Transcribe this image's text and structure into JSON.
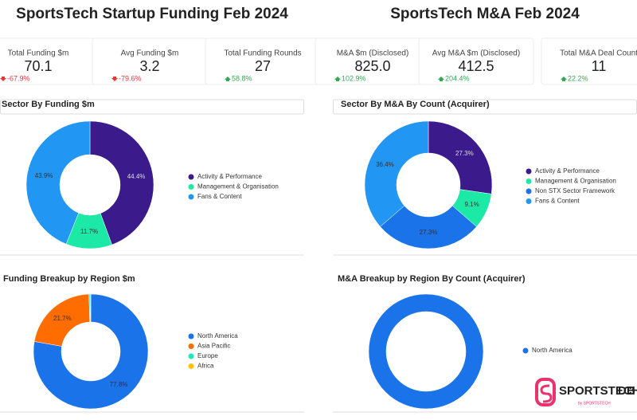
{
  "dashboards": [
    {
      "title": "SportsTech Startup Funding Feb 2024",
      "kpis": [
        {
          "label": "Total Funding $m",
          "value": "70.1",
          "change": "-67.9%"
        },
        {
          "label": "Avg Funding $m",
          "value": "3.2",
          "change": "-79.6%"
        },
        {
          "label": "Total Funding Rounds",
          "value": "27",
          "change": "58.8%"
        }
      ]
    },
    {
      "title": "SportsTech M&A Feb 2024",
      "kpis": [
        {
          "label": "M&A $m (Disclosed)",
          "value": "825.0",
          "change": "102.9%"
        },
        {
          "label": "Avg M&A $m (Disclosed)",
          "value": "412.5",
          "change": "204.4%"
        },
        {
          "label": "Total M&A Deal Count",
          "value": "11",
          "change": "22.2%"
        }
      ]
    }
  ],
  "chart_data": [
    {
      "type": "donut",
      "title": "Sector By Funding $m",
      "categories": [
        "Activity & Performance",
        "Management & Organisation",
        "Fans & Content"
      ],
      "values": [
        44.4,
        11.7,
        43.9
      ],
      "value_labels": [
        "44.4%",
        "11.7%",
        "43.9%"
      ],
      "colors": [
        "#3b1a8c",
        "#1de9a6",
        "#2196f3"
      ]
    },
    {
      "type": "donut",
      "title": "Sector By M&A By Count (Acquirer)",
      "categories": [
        "Activity & Performance",
        "Management & Organisation",
        "Non STX Sector Framework",
        "Fans & Content"
      ],
      "values": [
        27.3,
        9.1,
        27.3,
        36.4
      ],
      "value_labels": [
        "27.3%",
        "9.1%",
        "27.3%",
        "36.4%"
      ],
      "colors": [
        "#3b1a8c",
        "#1de9a6",
        "#1a73e8",
        "#2196f3"
      ]
    },
    {
      "type": "donut",
      "title": "Funding Breakup by Region $m",
      "categories": [
        "North America",
        "Asia Pacific",
        "Europe",
        "Africa"
      ],
      "values": [
        77.8,
        21.7,
        0.3,
        0.2
      ],
      "value_labels": [
        "77.8%",
        "21.7%",
        null,
        null
      ],
      "colors": [
        "#1a73e8",
        "#ff6d00",
        "#1de9b6",
        "#ffc107"
      ]
    },
    {
      "type": "donut",
      "title": "M&A Breakup by Region By Count (Acquirer)",
      "categories": [
        "North America"
      ],
      "values": [
        100
      ],
      "colors": [
        "#1a73e8"
      ]
    }
  ],
  "logo": {
    "name": "SPORTSTECH",
    "suffix": "DB",
    "byline": "by SPORTSTECH"
  }
}
